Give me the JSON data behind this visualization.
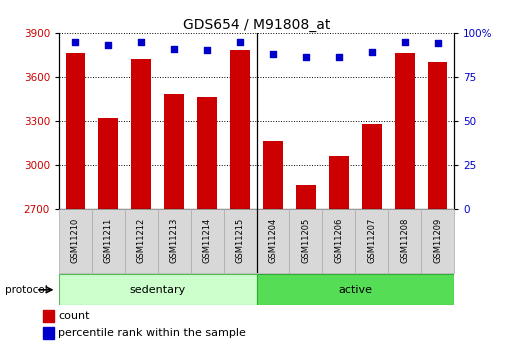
{
  "title": "GDS654 / M91808_at",
  "samples": [
    "GSM11210",
    "GSM11211",
    "GSM11212",
    "GSM11213",
    "GSM11214",
    "GSM11215",
    "GSM11204",
    "GSM11205",
    "GSM11206",
    "GSM11207",
    "GSM11208",
    "GSM11209"
  ],
  "counts": [
    3760,
    3320,
    3720,
    3480,
    3460,
    3780,
    3160,
    2860,
    3060,
    3280,
    3760,
    3700
  ],
  "percentile_ranks": [
    95,
    93,
    95,
    91,
    90,
    95,
    88,
    86,
    86,
    89,
    95,
    94
  ],
  "groups": [
    {
      "name": "sedentary",
      "start": 0,
      "end": 6,
      "color": "#ccffcc",
      "border": "#55bb55"
    },
    {
      "name": "active",
      "start": 6,
      "end": 12,
      "color": "#55dd55",
      "border": "#33aa33"
    }
  ],
  "ylim_left": [
    2700,
    3900
  ],
  "ylim_right": [
    0,
    100
  ],
  "yticks_left": [
    2700,
    3000,
    3300,
    3600,
    3900
  ],
  "yticks_right": [
    0,
    25,
    50,
    75,
    100
  ],
  "bar_color": "#cc0000",
  "dot_color": "#0000cc",
  "bar_width": 0.6,
  "bg_color": "#ffffff",
  "grid_color": "#000000",
  "title_fontsize": 10,
  "tick_fontsize": 7.5,
  "sample_fontsize": 6,
  "label_fontsize": 8,
  "protocol_label": "protocol",
  "legend_labels": [
    "count",
    "percentile rank within the sample"
  ],
  "sep_index": 6
}
